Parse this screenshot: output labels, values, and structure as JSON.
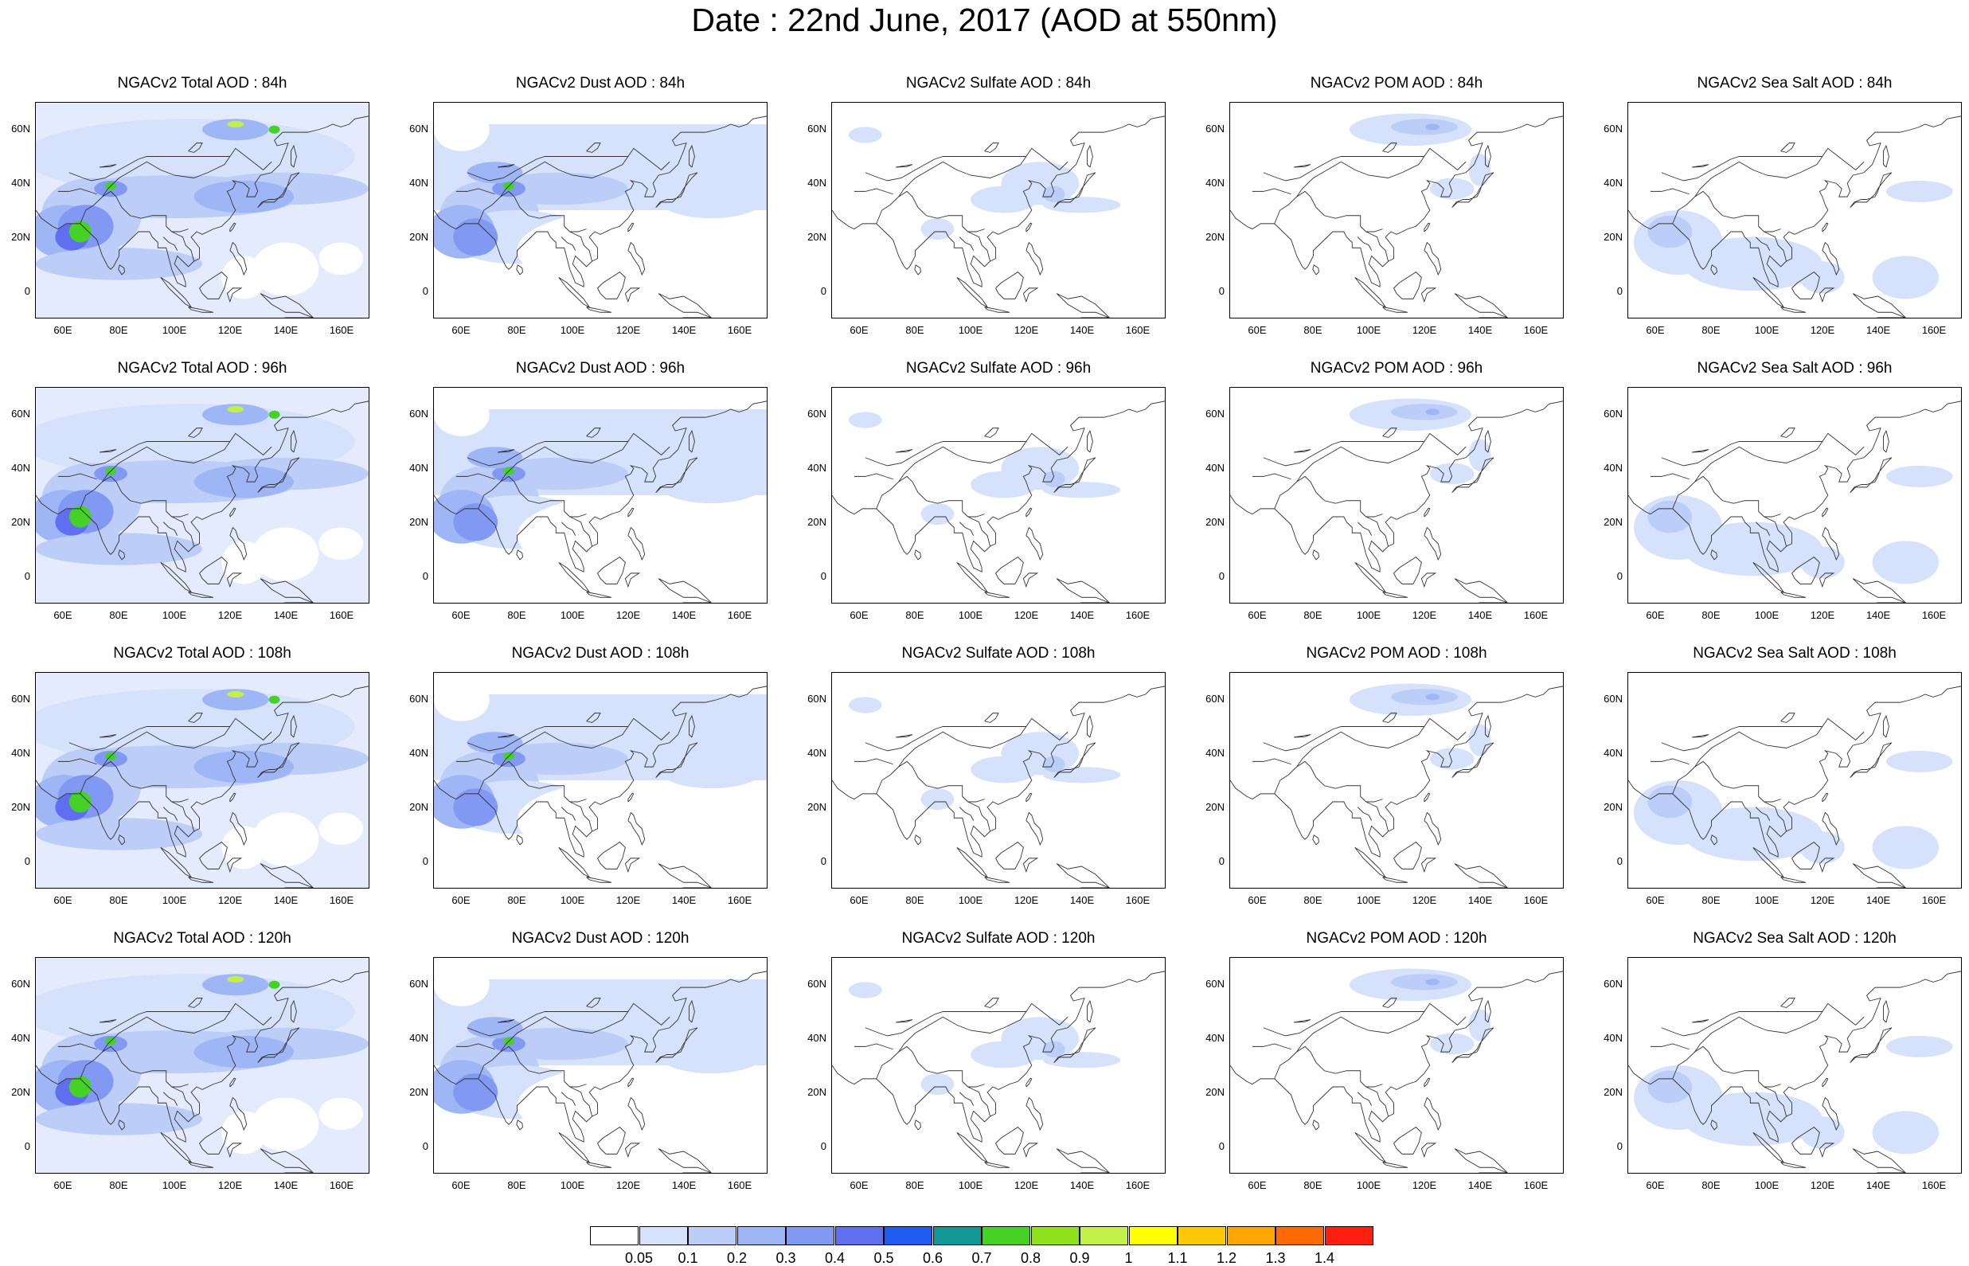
{
  "title": "Date : 22nd June, 2017 (AOD at 550nm)",
  "panels": [
    [
      "NGACv2 Total AOD : 84h",
      "NGACv2 Dust AOD : 84h",
      "NGACv2 Sulfate AOD : 84h",
      "NGACv2 POM AOD : 84h",
      "NGACv2 Sea Salt AOD : 84h"
    ],
    [
      "NGACv2 Total AOD : 96h",
      "NGACv2 Dust AOD : 96h",
      "NGACv2 Sulfate AOD : 96h",
      "NGACv2 POM AOD : 96h",
      "NGACv2 Sea Salt AOD : 96h"
    ],
    [
      "NGACv2 Total AOD : 108h",
      "NGACv2 Dust AOD : 108h",
      "NGACv2 Sulfate AOD : 108h",
      "NGACv2 POM AOD : 108h",
      "NGACv2 Sea Salt AOD : 108h"
    ],
    [
      "NGACv2 Total AOD : 120h",
      "NGACv2 Dust AOD : 120h",
      "NGACv2 Sulfate AOD : 120h",
      "NGACv2 POM AOD : 120h",
      "NGACv2 Sea Salt  AOD : 120h"
    ]
  ],
  "lat_ticks": [
    "60N",
    "40N",
    "20N",
    "0"
  ],
  "lon_ticks": [
    "60E",
    "80E",
    "100E",
    "120E",
    "140E",
    "160E"
  ],
  "colorbar": {
    "labels": [
      "0.05",
      "0.1",
      "0.2",
      "0.3",
      "0.4",
      "0.5",
      "0.6",
      "0.7",
      "0.8",
      "0.9",
      "1",
      "1.1",
      "1.2",
      "1.3",
      "1.4"
    ],
    "colors": [
      "#ffffff",
      "#d6e2fb",
      "#bccdf8",
      "#9fb6f6",
      "#8199f3",
      "#5f6ff0",
      "#1f5bf0",
      "#139696",
      "#46d126",
      "#8ee31c",
      "#c3f048",
      "#ffff00",
      "#ffc800",
      "#ffa500",
      "#ff6a00",
      "#ff1e10"
    ]
  }
}
